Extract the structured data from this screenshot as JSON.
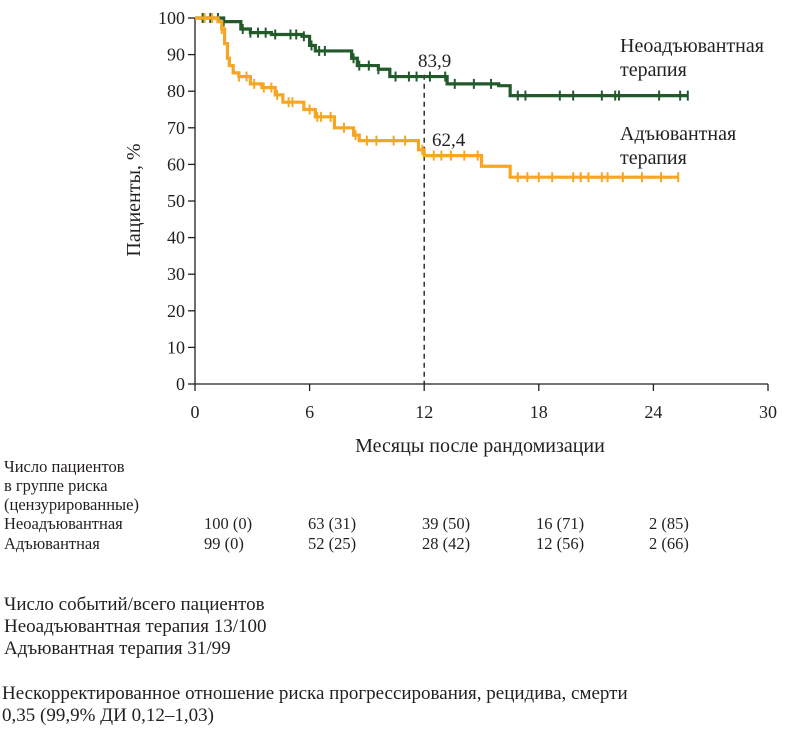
{
  "colors": {
    "neo": "#225a2b",
    "adj": "#f6a623",
    "axis": "#231f20"
  },
  "chart_data": {
    "type": "line",
    "subtype": "kaplan-meier",
    "title": "",
    "xlabel": "Месяцы после рандомизации",
    "ylabel": "Пациенты, %",
    "xlim": [
      0,
      30
    ],
    "ylim": [
      0,
      100
    ],
    "xticks": [
      "0",
      "6",
      "12",
      "18",
      "24",
      "30"
    ],
    "yticks": [
      "0",
      "10",
      "20",
      "30",
      "40",
      "50",
      "60",
      "70",
      "80",
      "90",
      "100"
    ],
    "grid": false,
    "reference_line": {
      "x": 12,
      "style": "dashed"
    },
    "series": [
      {
        "name": "Неоадъювантная терапия",
        "label_lines": [
          "Неоадъювантная",
          "терапия"
        ],
        "color": "#225a2b",
        "annotation": "83,9",
        "steps": [
          [
            0,
            100
          ],
          [
            1.5,
            99
          ],
          [
            2.4,
            97
          ],
          [
            2.9,
            96
          ],
          [
            4,
            95.5
          ],
          [
            5.6,
            95
          ],
          [
            6,
            92.5
          ],
          [
            6.3,
            91
          ],
          [
            8.2,
            89
          ],
          [
            8.5,
            87
          ],
          [
            9.6,
            86
          ],
          [
            10.2,
            84
          ],
          [
            13.2,
            82
          ],
          [
            15.9,
            81.5
          ],
          [
            16.5,
            78.8
          ],
          [
            25.8,
            78.8
          ]
        ],
        "censor_x": [
          0.4,
          0.8,
          1.2,
          1.5,
          2.5,
          2.9,
          3.3,
          3.7,
          4.2,
          5.0,
          5.3,
          5.7,
          6.1,
          6.5,
          6.8,
          8.3,
          8.6,
          9.1,
          9.6,
          10.5,
          11.2,
          11.6,
          12.3,
          13.1,
          13.6,
          14.6,
          15.5,
          16.9,
          17.3,
          19.1,
          19.8,
          21.3,
          22.0,
          22.2,
          24.3,
          25.4,
          25.8
        ]
      },
      {
        "name": "Адъювантная терапия",
        "label_lines": [
          "Адъювантная",
          "терапия"
        ],
        "color": "#f6a623",
        "annotation": "62,4",
        "steps": [
          [
            0,
            100
          ],
          [
            1.2,
            99
          ],
          [
            1.4,
            97
          ],
          [
            1.55,
            93
          ],
          [
            1.7,
            89
          ],
          [
            1.8,
            87
          ],
          [
            2.0,
            85
          ],
          [
            2.3,
            84
          ],
          [
            2.9,
            82
          ],
          [
            3.5,
            81
          ],
          [
            4.2,
            79
          ],
          [
            4.6,
            77
          ],
          [
            5.7,
            75
          ],
          [
            6.3,
            73
          ],
          [
            7.3,
            70
          ],
          [
            8.3,
            68
          ],
          [
            8.6,
            66.5
          ],
          [
            11.7,
            64
          ],
          [
            12,
            62.4
          ],
          [
            15,
            59.5
          ],
          [
            16.5,
            56.5
          ],
          [
            25.3,
            56.5
          ]
        ],
        "censor_x": [
          0.5,
          0.9,
          1.4,
          2.3,
          2.7,
          3.1,
          3.6,
          4.0,
          4.3,
          4.9,
          5.1,
          6.0,
          6.4,
          6.6,
          7.1,
          7.8,
          8.4,
          9.0,
          9.5,
          10.4,
          11.0,
          11.9,
          12.5,
          12.9,
          13.4,
          14.1,
          14.8,
          16.9,
          17.4,
          18.0,
          18.7,
          19.8,
          20.2,
          20.6,
          21.3,
          21.6,
          22.4,
          23.4,
          24.4,
          25.3
        ]
      }
    ]
  },
  "risk_table": {
    "header_lines": [
      "Число пациентов",
      "в группе риска",
      "(цензурированные)"
    ],
    "rows": [
      {
        "label": "Неоадъювантная",
        "values": [
          "100 (0)",
          "63 (31)",
          "39 (50)",
          "16 (71)",
          "2 (85)"
        ]
      },
      {
        "label": "Адъювантная",
        "values": [
          "99 (0)",
          "52 (25)",
          "28 (42)",
          "12 (56)",
          "2 (66)"
        ]
      }
    ]
  },
  "events": {
    "title": "Число событий/всего пациентов",
    "neo": "Неоадъювантная терапия 13/100",
    "adj": "Адъювантная терапия 31/99"
  },
  "hazard": {
    "line1": "Нескорректированное отношение риска прогрессирования, рецидива, смерти",
    "line2": "0,35 (99,9% ДИ 0,12–1,03)"
  }
}
